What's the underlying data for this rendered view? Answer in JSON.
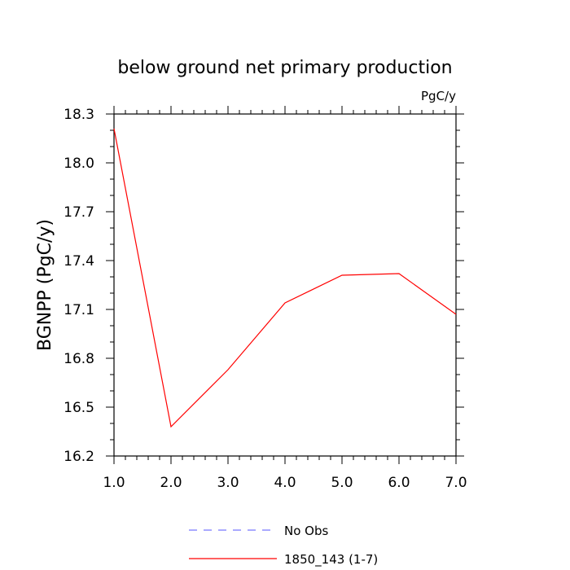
{
  "chart_data": {
    "type": "line",
    "title": "below ground net primary production",
    "units_label": "PgC/y",
    "xlabel": "",
    "ylabel": "BGNPP  (PgC/y)",
    "xlim": [
      1.0,
      7.0
    ],
    "ylim": [
      16.2,
      18.3
    ],
    "x_ticks": [
      "1.0",
      "2.0",
      "3.0",
      "4.0",
      "5.0",
      "6.0",
      "7.0"
    ],
    "y_ticks": [
      "16.2",
      "16.5",
      "16.8",
      "17.1",
      "17.4",
      "17.7",
      "18.0",
      "18.3"
    ],
    "x": [
      1,
      2,
      3,
      4,
      5,
      6,
      7
    ],
    "series": [
      {
        "name": "1850_143 (1-7)",
        "color": "#ff0000",
        "dash": "solid",
        "values": [
          18.21,
          16.38,
          16.73,
          17.14,
          17.31,
          17.32,
          17.07
        ]
      }
    ],
    "legend": [
      {
        "label": "No Obs",
        "color": "#7777ff",
        "dash": "dashed"
      },
      {
        "label": "1850_143 (1-7)",
        "color": "#ff0000",
        "dash": "solid"
      }
    ],
    "legend_position": "bottom-center",
    "grid": false
  }
}
